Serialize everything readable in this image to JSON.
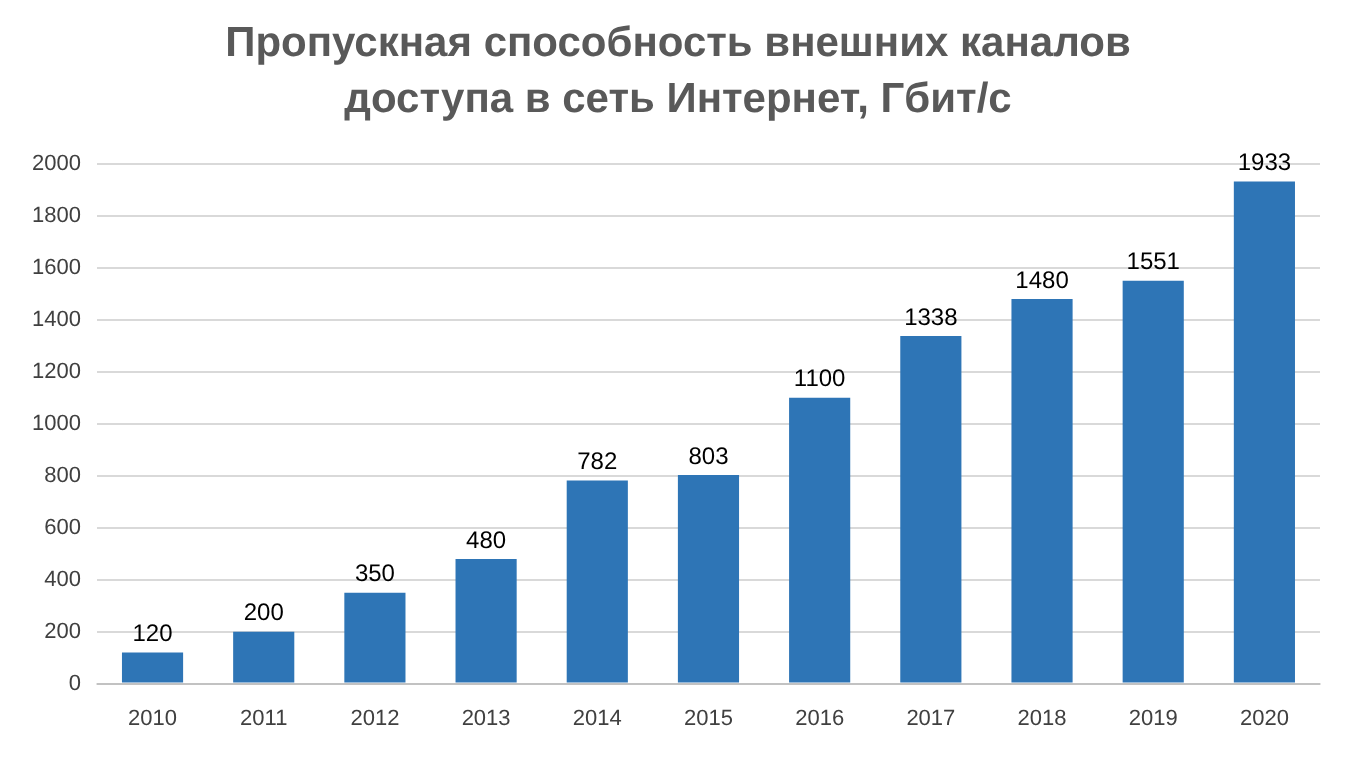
{
  "chart_data": {
    "type": "bar",
    "title": "Пропускная способность внешних каналов доступа в сеть Интернет, Гбит/с",
    "categories": [
      "2010",
      "2011",
      "2012",
      "2013",
      "2014",
      "2015",
      "2016",
      "2017",
      "2018",
      "2019",
      "2020"
    ],
    "values": [
      120,
      200,
      350,
      480,
      782,
      803,
      1100,
      1338,
      1480,
      1551,
      1933
    ],
    "color": "#2e75b6",
    "ylim": [
      0,
      2000
    ],
    "yticks": [
      0,
      200,
      400,
      600,
      800,
      1000,
      1200,
      1400,
      1600,
      1800,
      2000
    ],
    "grid": "y",
    "data_labels": true
  }
}
